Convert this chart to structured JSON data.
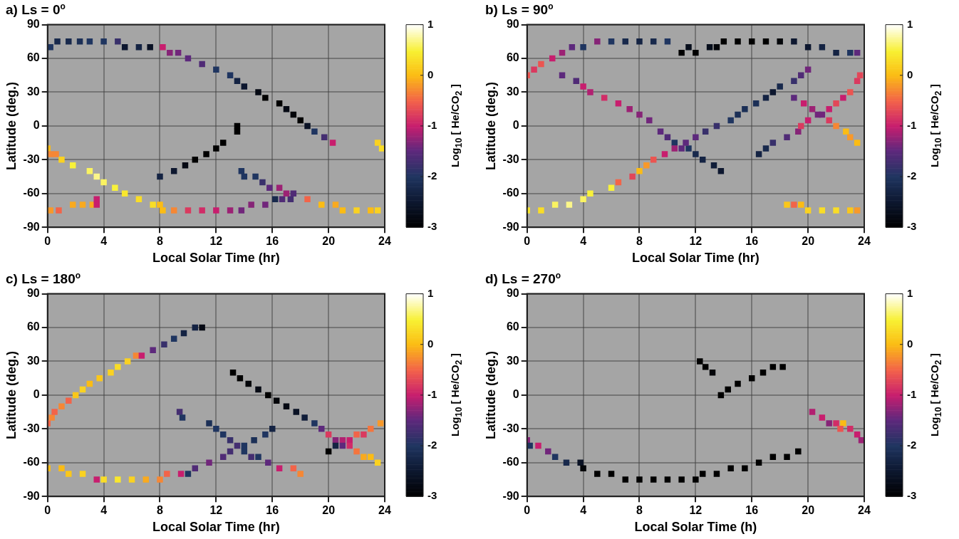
{
  "chart_data": [
    {
      "type": "scatter",
      "title": "a) Ls = 0$^{o}$",
      "xlabel": "Local Solar Time (hr)",
      "ylabel": "Latitude (deg.)",
      "clabel": "Log$_{10}$ [ He/CO$_{2}$ ]",
      "xlim": [
        0,
        24
      ],
      "ylim": [
        -90,
        90
      ],
      "xticks": [
        0,
        4,
        8,
        12,
        16,
        20,
        24
      ],
      "yticks": [
        -90,
        -60,
        -30,
        0,
        30,
        60,
        90
      ],
      "clim": [
        -3,
        1
      ],
      "cticks": [
        -3,
        -2,
        -1,
        0,
        1
      ],
      "grid": true,
      "marker": "square",
      "x": [
        0.2,
        0.7,
        1.5,
        2.3,
        3,
        4,
        5,
        5.5,
        6.5,
        7.3,
        8.2,
        8.7,
        9.3,
        10,
        11,
        12,
        13,
        13.5,
        14,
        15,
        15.5,
        16.5,
        17,
        17.5,
        18,
        18.5,
        19,
        19.7,
        20.3,
        13.5,
        13.5,
        8,
        9,
        9.8,
        10.5,
        11.3,
        12,
        12.5,
        0,
        0.2,
        0.6,
        1,
        1.8,
        3,
        3.5,
        4,
        4.8,
        5.5,
        6.5,
        7.5,
        8,
        0.2,
        0.8,
        1.8,
        2.5,
        3.2,
        3.5,
        3.5,
        8.2,
        9,
        10,
        11,
        12,
        13,
        13.8,
        14.5,
        15.5,
        16.2,
        16.7,
        17.3,
        13.8,
        14,
        14.8,
        15.3,
        15.8,
        16.5,
        17,
        17.5,
        18.5,
        19.5,
        20.5,
        21,
        22,
        23,
        23.5,
        23.5,
        23.8
      ],
      "values": [
        70,
        75,
        75,
        75,
        75,
        75,
        75,
        70,
        70,
        70,
        70,
        65,
        65,
        60,
        55,
        50,
        45,
        40,
        35,
        30,
        25,
        20,
        15,
        10,
        5,
        0,
        -5,
        -10,
        -15,
        0,
        -5,
        -45,
        -40,
        -35,
        -30,
        -25,
        -20,
        -15,
        -20,
        -25,
        -25,
        -30,
        -35,
        -40,
        -45,
        -50,
        -55,
        -60,
        -65,
        -70,
        -70,
        -75,
        -75,
        -70,
        -70,
        -70,
        -70,
        -65,
        -75,
        -75,
        -75,
        -75,
        -75,
        -75,
        -75,
        -70,
        -70,
        -65,
        -65,
        -65,
        -40,
        -45,
        -45,
        -50,
        -55,
        -55,
        -60,
        -60,
        -65,
        -70,
        -70,
        -75,
        -75,
        -75,
        -75,
        -15,
        -20
      ],
      "cvalues": [
        -2,
        -2.2,
        -2.2,
        -2.1,
        -2,
        -2,
        -1.8,
        -2.5,
        -2.3,
        -2.6,
        -1,
        -1.3,
        -1.4,
        -1.5,
        -1.6,
        -2,
        -2,
        -2.3,
        -2.5,
        -2.8,
        -3,
        -3,
        -2.8,
        -2.9,
        -3,
        -2.6,
        -2,
        -1.7,
        -1,
        -3,
        -3,
        -2.3,
        -2.5,
        -2.8,
        -3,
        -3,
        -3,
        -3,
        0,
        -0.3,
        -0.3,
        0.2,
        0.5,
        0.6,
        0.7,
        0.6,
        0.5,
        0.4,
        0.3,
        0.3,
        0,
        -0.2,
        -0.5,
        -0.1,
        -0.1,
        -0.1,
        -1,
        -1,
        0,
        -0.3,
        -0.8,
        -0.9,
        -1,
        -1.2,
        -1.4,
        -1.3,
        -1.4,
        -2.2,
        -1.6,
        -1.7,
        -2,
        -2,
        -2,
        -1.8,
        -1.5,
        -1.2,
        -1.2,
        -1.6,
        -0.5,
        0,
        -0.1,
        0,
        0.2,
        0,
        0.2,
        0.2,
        0.3
      ]
    },
    {
      "type": "scatter",
      "title": "b) Ls = 90$^{o}$",
      "xlabel": "Local Solar Time (hr)",
      "ylabel": "Latitude (deg.)",
      "clabel": "Log$_{10}$ [ He/CO$_{2}$ ]",
      "xlim": [
        0,
        24
      ],
      "ylim": [
        -90,
        90
      ],
      "xticks": [
        0,
        4,
        8,
        12,
        16,
        20,
        24
      ],
      "yticks": [
        -90,
        -60,
        -30,
        0,
        30,
        60,
        90
      ],
      "clim": [
        -3,
        1
      ],
      "cticks": [
        -3,
        -2,
        -1,
        0,
        1
      ],
      "grid": true,
      "marker": "square",
      "x": [
        0,
        0.5,
        1,
        1.8,
        2.5,
        3.2,
        4,
        5,
        6,
        7,
        8,
        9,
        10,
        11,
        11.5,
        12,
        13,
        13.5,
        14,
        15,
        16,
        17,
        18,
        19,
        20,
        21,
        22,
        23,
        23.5,
        2.5,
        3.5,
        4,
        4.5,
        5.5,
        6.5,
        7.3,
        8,
        8.7,
        9.5,
        10,
        10.5,
        11,
        11.5,
        12,
        12.5,
        13.3,
        13.8,
        0,
        1,
        2,
        3,
        4,
        4.5,
        6,
        6.5,
        7.5,
        8,
        8.5,
        9,
        9.8,
        10.5,
        11.3,
        12,
        12.7,
        13.5,
        14.5,
        15,
        15.5,
        16.3,
        17,
        17.5,
        18,
        19,
        19.5,
        20,
        19,
        19.7,
        20.3,
        20.7,
        21.5,
        22,
        22.7,
        23,
        23.5,
        16.5,
        17,
        17.5,
        18.5,
        19.3,
        19.5,
        20,
        21,
        21.5,
        22,
        22.5,
        23,
        23.5,
        23.7,
        18.5,
        19,
        19.5,
        20,
        21,
        22,
        23,
        23.5
      ],
      "values": [
        45,
        50,
        55,
        60,
        65,
        70,
        70,
        75,
        75,
        75,
        75,
        75,
        75,
        65,
        70,
        65,
        70,
        70,
        75,
        75,
        75,
        75,
        75,
        75,
        70,
        70,
        65,
        65,
        65,
        45,
        40,
        35,
        30,
        25,
        20,
        15,
        10,
        5,
        -5,
        -10,
        -15,
        -20,
        -20,
        -25,
        -30,
        -35,
        -40,
        -75,
        -75,
        -70,
        -70,
        -65,
        -60,
        -55,
        -50,
        -45,
        -40,
        -35,
        -30,
        -25,
        -20,
        -15,
        -10,
        -5,
        0,
        5,
        10,
        15,
        20,
        25,
        30,
        35,
        40,
        45,
        50,
        25,
        20,
        15,
        10,
        5,
        0,
        -5,
        -10,
        -15,
        -25,
        -20,
        -15,
        -10,
        -5,
        0,
        5,
        10,
        15,
        20,
        25,
        30,
        40,
        45,
        -70,
        -70,
        -70,
        -75,
        -75,
        -75,
        -75,
        -75
      ],
      "cvalues": [
        -0.6,
        -0.8,
        -0.6,
        -1,
        -1.2,
        -1.5,
        -2,
        -1.3,
        -2,
        -2.2,
        -2.3,
        -2.2,
        -2,
        -3,
        -2.7,
        -3,
        -2.7,
        -2.9,
        -3,
        -3,
        -3,
        -3,
        -2.9,
        -2.5,
        -2.5,
        -2.3,
        -2.3,
        -2,
        -1.5,
        -1.5,
        -1.6,
        -1,
        -1.1,
        -0.9,
        -1,
        -1.2,
        -1.3,
        -1.4,
        -1.5,
        -1.6,
        -2,
        -1.5,
        -2,
        -2.2,
        -2.3,
        -2.4,
        -2.5,
        0.4,
        0.3,
        0.6,
        0.7,
        0.6,
        0.5,
        0.5,
        -0.5,
        -0.7,
        0,
        -0.2,
        -0.6,
        -1,
        -1.2,
        -1.5,
        -1.5,
        -1.8,
        -1.8,
        -2,
        -2.1,
        -2.1,
        -2.1,
        -2.3,
        -2.5,
        -2.2,
        -1.8,
        -1.6,
        -1.4,
        -1.5,
        -1,
        -1.2,
        -1.4,
        -0.8,
        -0.3,
        0,
        -0.2,
        0,
        -2.3,
        -2.2,
        -1.8,
        -1.6,
        -1.3,
        -0.8,
        -1,
        -1.4,
        -1,
        -0.7,
        -1,
        -0.6,
        -0.8,
        -0.7,
        0.1,
        -0.5,
        0,
        0.2,
        0.3,
        0.3,
        0.1,
        -0.2
      ]
    },
    {
      "type": "scatter",
      "title": "c) Ls = 180$^{o}$",
      "xlabel": "Local Solar Time (hr)",
      "ylabel": "Latitude (deg.)",
      "clabel": "Log$_{10}$ [ He/CO$_{2}$ ]",
      "xlim": [
        0,
        24
      ],
      "ylim": [
        -90,
        90
      ],
      "xticks": [
        0,
        4,
        8,
        12,
        16,
        20,
        24
      ],
      "yticks": [
        -90,
        -60,
        -30,
        0,
        30,
        60,
        90
      ],
      "clim": [
        -3,
        1
      ],
      "cticks": [
        -3,
        -2,
        -1,
        0,
        1
      ],
      "grid": true,
      "marker": "square",
      "x": [
        0,
        0.3,
        0.5,
        1,
        1.5,
        2,
        2.5,
        3,
        3.7,
        4.5,
        5,
        5.7,
        6.3,
        6.7,
        7.5,
        8.3,
        9,
        9.7,
        10.5,
        11,
        13.2,
        13.7,
        14.3,
        15,
        15.7,
        16.3,
        17,
        17.7,
        18.3,
        19,
        19.5,
        20,
        20.5,
        21,
        21.5,
        22,
        22.5,
        23,
        23.7,
        20,
        20.5,
        21,
        21.5,
        22,
        22.5,
        23,
        23.5,
        9.4,
        9.6,
        11.5,
        12,
        12.5,
        13,
        13.5,
        14,
        14.5,
        15,
        15.7,
        16.5,
        17.5,
        18,
        12.5,
        13,
        14,
        14.7,
        15.5,
        16,
        0,
        1,
        1.5,
        2.5,
        3.5,
        4,
        5,
        6,
        7,
        8,
        8.5,
        9.5,
        10,
        10.5,
        11.5
      ],
      "values": [
        -25,
        -20,
        -15,
        -10,
        -5,
        0,
        5,
        10,
        15,
        20,
        25,
        30,
        35,
        35,
        40,
        45,
        50,
        55,
        60,
        60,
        20,
        15,
        10,
        5,
        0,
        -5,
        -10,
        -15,
        -20,
        -25,
        -30,
        -35,
        -40,
        -40,
        -40,
        -35,
        -35,
        -30,
        -25,
        -50,
        -45,
        -45,
        -45,
        -50,
        -55,
        -55,
        -60,
        -15,
        -20,
        -25,
        -30,
        -35,
        -40,
        -45,
        -50,
        -55,
        -55,
        -60,
        -65,
        -65,
        -70,
        -55,
        -50,
        -45,
        -40,
        -35,
        -30,
        -65,
        -65,
        -70,
        -70,
        -75,
        -75,
        -75,
        -75,
        -75,
        -75,
        -70,
        -70,
        -70,
        -65,
        -60
      ],
      "cvalues": [
        -0.5,
        -0.3,
        -0.5,
        -0.3,
        -0.5,
        0.1,
        0.2,
        0,
        0.1,
        0.2,
        0.3,
        0.2,
        -0.3,
        -1,
        -1.5,
        -1.8,
        -2,
        -2.3,
        -2.3,
        -2.8,
        -3,
        -3,
        -2.9,
        -2.8,
        -3,
        -2.9,
        -2.8,
        -2.6,
        -2.4,
        -2,
        -1.5,
        -0.8,
        -1.3,
        -1.1,
        -1,
        -0.5,
        -0.8,
        -0.4,
        -0.2,
        -3,
        -2.3,
        -1.5,
        -0.9,
        -0.4,
        -0.1,
        0,
        0.2,
        -1.7,
        -2,
        -2.1,
        -2,
        -2,
        -1.8,
        -1.7,
        -2,
        -1.7,
        -2,
        -1.5,
        -1,
        -0.5,
        -0.3,
        -1.6,
        -1.7,
        -2,
        -2.1,
        -2,
        -2.3,
        0,
        0,
        0.1,
        0.2,
        -1,
        0.3,
        0.4,
        0.2,
        -0.1,
        -0.3,
        -0.5,
        -1,
        -2,
        -1.6,
        -1.4
      ]
    },
    {
      "type": "scatter",
      "title": "d) Ls = 270$^{o}$",
      "xlabel": "Local Solar Time (h)",
      "ylabel": "Latitude (deg.)",
      "clabel": "Log$_{10}$ [ He/CO$_{2}$ ]",
      "xlim": [
        0,
        24
      ],
      "ylim": [
        -90,
        90
      ],
      "xticks": [
        0,
        4,
        8,
        12,
        16,
        20,
        24
      ],
      "yticks": [
        -90,
        -60,
        -30,
        0,
        30,
        60,
        90
      ],
      "clim": [
        -3,
        1
      ],
      "cticks": [
        -3,
        -2,
        -1,
        0,
        1
      ],
      "grid": true,
      "marker": "square",
      "x": [
        12.3,
        12.7,
        13.2,
        13.8,
        14.3,
        15,
        16,
        16.8,
        17.5,
        18.2,
        0,
        0.2,
        0.8,
        1.5,
        2,
        2.8,
        3.8,
        4,
        5,
        6,
        7,
        8,
        9,
        10,
        11,
        12,
        12.5,
        13.5,
        14.5,
        15.5,
        16.5,
        17.5,
        18.5,
        19.3,
        20.3,
        21,
        21.5,
        22,
        22.5,
        22.3,
        23,
        23.5,
        23.8
      ],
      "values": [
        30,
        25,
        20,
        0,
        5,
        10,
        15,
        20,
        25,
        25,
        -40,
        -45,
        -45,
        -50,
        -55,
        -60,
        -60,
        -65,
        -70,
        -70,
        -75,
        -75,
        -75,
        -75,
        -75,
        -75,
        -70,
        -70,
        -65,
        -65,
        -60,
        -55,
        -55,
        -50,
        -15,
        -20,
        -25,
        -25,
        -25,
        -30,
        -30,
        -35,
        -40
      ],
      "cvalues": [
        -3,
        -3,
        -2.9,
        -3,
        -3,
        -3,
        -3,
        -3,
        -3,
        -3,
        -1.3,
        -2,
        -1,
        -1.4,
        -2,
        -2.2,
        -2.6,
        -2.9,
        -3,
        -3,
        -3,
        -3,
        -3,
        -3,
        -3,
        -3,
        -3,
        -3,
        -3,
        -3,
        -3,
        -3,
        -3,
        -3,
        -1.1,
        -1,
        -1.3,
        -0.9,
        0,
        -0.6,
        -0.9,
        -1,
        -1.2
      ]
    }
  ]
}
